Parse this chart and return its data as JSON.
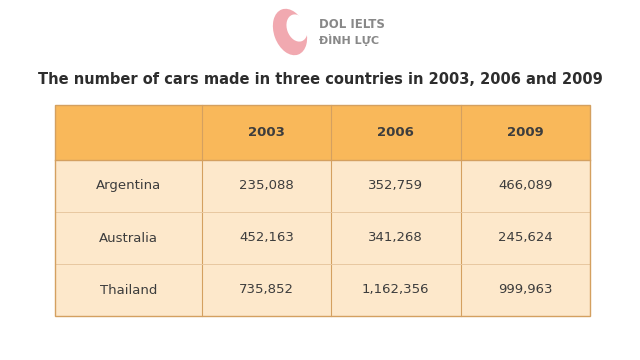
{
  "title": "The number of cars made in three countries in 2003, 2006 and 2009",
  "columns": [
    "",
    "2003",
    "2006",
    "2009"
  ],
  "rows": [
    [
      "Argentina",
      "235,088",
      "352,759",
      "466,089"
    ],
    [
      "Australia",
      "452,163",
      "341,268",
      "245,624"
    ],
    [
      "Thailand",
      "735,852",
      "1,162,356",
      "999,963"
    ]
  ],
  "header_bg": "#F9B85A",
  "row_bg": "#FDE8CB",
  "header_text_color": "#3D3D3D",
  "cell_text_color": "#3D3D3D",
  "title_color": "#2D2D2D",
  "bg_color": "#FFFFFF",
  "logo_text1": "DOL IELTS",
  "logo_text2": "ĐÌNH LỰC",
  "logo_text_color": "#888888",
  "logo_symbol_color": "#F0A0A8",
  "title_fontsize": 10.5,
  "header_fontsize": 9.5,
  "cell_fontsize": 9.5,
  "divider_color": "#E8C8A0",
  "outer_border_color": "#D4A060"
}
